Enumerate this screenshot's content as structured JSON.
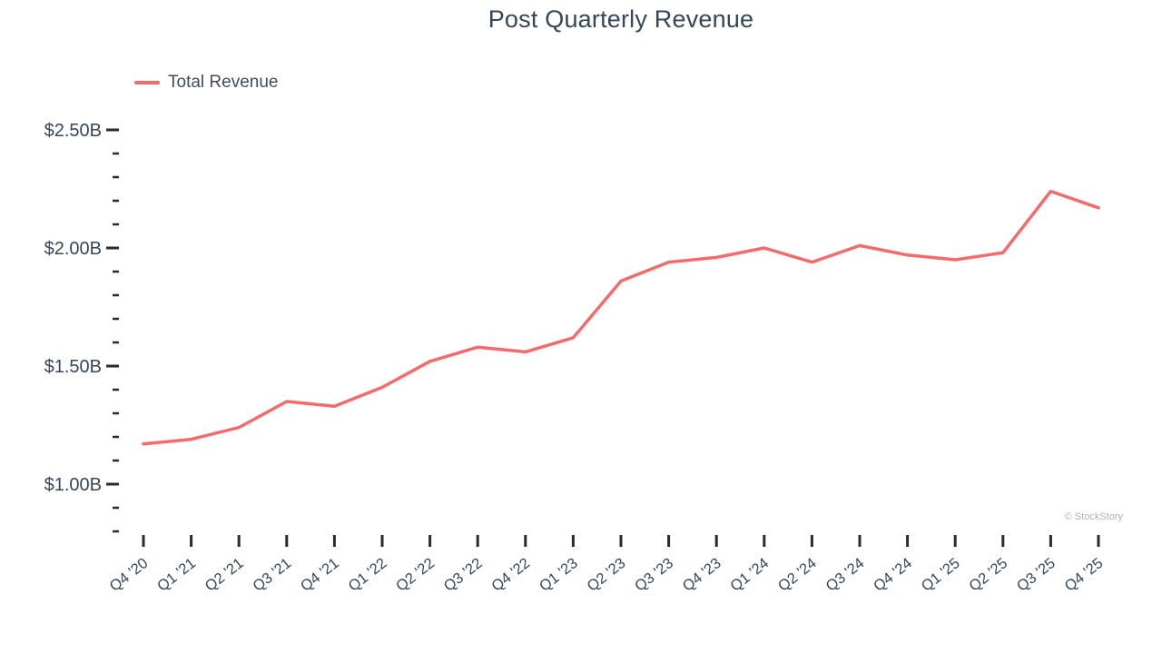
{
  "watermark": "© StockStory",
  "chart_data": {
    "type": "line",
    "title": "Post Quarterly Revenue",
    "xlabel": "",
    "ylabel": "",
    "grid": false,
    "legend_position": "top-left",
    "ylim": [
      0.75,
      2.6
    ],
    "colors": {
      "line": "#f56b6b",
      "text": "#36455a",
      "tick": "#2b2b2b",
      "watermark": "#b0b0b0"
    },
    "categories": [
      "Q4 '20",
      "Q1 '21",
      "Q2 '21",
      "Q3 '21",
      "Q4 '21",
      "Q1 '22",
      "Q2 '22",
      "Q3 '22",
      "Q4 '22",
      "Q1 '23",
      "Q2 '23",
      "Q3 '23",
      "Q4 '23",
      "Q1 '24",
      "Q2 '24",
      "Q3 '24",
      "Q4 '24",
      "Q1 '25",
      "Q2 '25",
      "Q3 '25",
      "Q4 '25"
    ],
    "series": [
      {
        "name": "Total Revenue",
        "values": [
          1.17,
          1.19,
          1.24,
          1.35,
          1.33,
          1.41,
          1.52,
          1.58,
          1.56,
          1.62,
          1.86,
          1.94,
          1.96,
          2.0,
          1.94,
          2.01,
          1.97,
          1.95,
          1.98,
          2.24,
          2.17
        ]
      }
    ],
    "y_axis": {
      "major_ticks": [
        {
          "value": 2.5,
          "label": "$2.50B"
        },
        {
          "value": 2.0,
          "label": "$2.00B"
        },
        {
          "value": 1.5,
          "label": "$1.50B"
        },
        {
          "value": 1.0,
          "label": "$1.00B"
        }
      ],
      "minor_ticks": [
        2.4,
        2.3,
        2.2,
        2.1,
        1.9,
        1.8,
        1.7,
        1.6,
        1.4,
        1.3,
        1.2,
        1.1,
        0.9,
        0.8
      ]
    }
  }
}
